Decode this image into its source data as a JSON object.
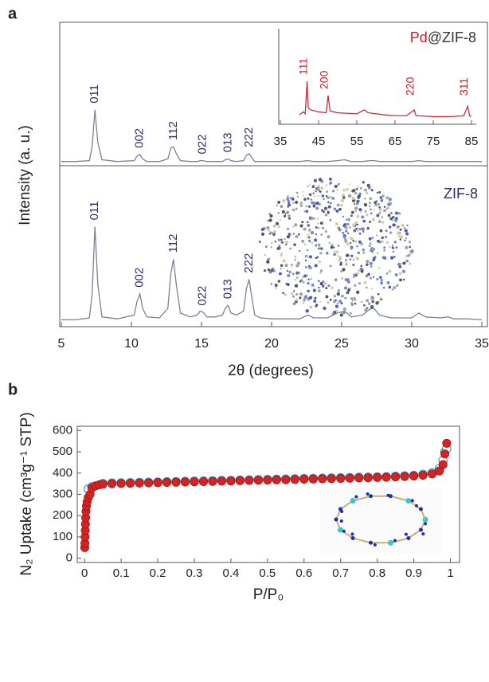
{
  "chart_data": [
    {
      "type": "line",
      "panel": "a",
      "xlabel": "2θ (degrees)",
      "ylabel": "Intensity (a. u.)",
      "xlim": [
        5,
        35
      ],
      "xticks": [
        5,
        10,
        15,
        20,
        25,
        30,
        35
      ],
      "ylim": [
        0,
        160
      ],
      "x": [
        5,
        6,
        7,
        7.2,
        7.4,
        7.6,
        7.9,
        9,
        10.2,
        10.4,
        10.6,
        10.8,
        11.1,
        12,
        12.6,
        12.8,
        13.0,
        13.2,
        13.5,
        14.2,
        14.7,
        14.9,
        15.1,
        15.4,
        16,
        16.5,
        16.7,
        16.9,
        17.1,
        17.5,
        18,
        18.2,
        18.4,
        18.6,
        18.8,
        19.2,
        20,
        22,
        22.6,
        23,
        24,
        24.7,
        25.2,
        25.7,
        26.5,
        27,
        27.3,
        27.7,
        28.5,
        30,
        30.5,
        31,
        32,
        32.6,
        33,
        34,
        35
      ],
      "series": [
        {
          "color": "#7c8098",
          "label_color": "#2b2f6e",
          "values": [
            3,
            3,
            4,
            20,
            62,
            25,
            5,
            3,
            4,
            9,
            11,
            6,
            3,
            3,
            6,
            18,
            20,
            12,
            4,
            3,
            3,
            4,
            4,
            3,
            3,
            3,
            5,
            6,
            4,
            3,
            4,
            10,
            12,
            7,
            3,
            3,
            3,
            3,
            4,
            3,
            3,
            4,
            5,
            3,
            3,
            4,
            4,
            3,
            3,
            3,
            4,
            3,
            3,
            3,
            3,
            3,
            3
          ],
          "peak_labels": [
            {
              "x": 7.4,
              "label": "011"
            },
            {
              "x": 10.6,
              "label": "002"
            },
            {
              "x": 13.0,
              "label": "112"
            },
            {
              "x": 15.1,
              "label": "022"
            },
            {
              "x": 16.9,
              "label": "013"
            },
            {
              "x": 18.4,
              "label": "222"
            }
          ]
        },
        {
          "name": "ZIF-8",
          "color": "#7c8098",
          "label_color": "#2b2f6e",
          "values": [
            3,
            3,
            5,
            30,
            100,
            40,
            6,
            4,
            8,
            22,
            30,
            15,
            6,
            5,
            15,
            50,
            66,
            40,
            10,
            6,
            8,
            12,
            11,
            6,
            6,
            8,
            15,
            18,
            10,
            8,
            12,
            35,
            45,
            25,
            8,
            5,
            4,
            4,
            8,
            5,
            5,
            10,
            12,
            6,
            8,
            14,
            15,
            8,
            5,
            5,
            10,
            6,
            5,
            6,
            4,
            4,
            3
          ],
          "peak_labels": [
            {
              "x": 7.4,
              "label": "011"
            },
            {
              "x": 10.6,
              "label": "002"
            },
            {
              "x": 13.0,
              "label": "112"
            },
            {
              "x": 15.1,
              "label": "022"
            },
            {
              "x": 16.9,
              "label": "013"
            },
            {
              "x": 18.4,
              "label": "222"
            }
          ]
        }
      ]
    },
    {
      "type": "line",
      "title": [
        "Pd",
        "@ZIF-8"
      ],
      "title_colors": [
        "#c8202a",
        "#333333"
      ],
      "xlim": [
        35,
        85
      ],
      "xticks": [
        35,
        45,
        55,
        65,
        75,
        85
      ],
      "ylim": [
        0,
        100
      ],
      "x": [
        40,
        41,
        41.5,
        42,
        42.3,
        43,
        45,
        47,
        47.5,
        48,
        50,
        55,
        57,
        58,
        62,
        65,
        68,
        70,
        70.5,
        75,
        80,
        83,
        84,
        84.5,
        85
      ],
      "series": [
        {
          "color": "#c8202a",
          "label_color": "#c8202a",
          "values": [
            5,
            8,
            6,
            40,
            12,
            10,
            8,
            7,
            25,
            9,
            7,
            6,
            10,
            7,
            5,
            4,
            4,
            10,
            4,
            3,
            3,
            4,
            14,
            4,
            3
          ],
          "peak_labels": [
            {
              "x": 42,
              "label": "111"
            },
            {
              "x": 47.5,
              "label": "200"
            },
            {
              "x": 70,
              "label": "220"
            },
            {
              "x": 84,
              "label": "311"
            }
          ]
        }
      ]
    },
    {
      "type": "scatter",
      "panel": "b",
      "xlabel": "P/P₀",
      "ylabel": "N₂ Uptake (cm³g⁻¹ STP)",
      "xlim": [
        -0.02,
        1.025
      ],
      "xticks": [
        0,
        0.1,
        0.2,
        0.3,
        0.4,
        0.5,
        0.6,
        0.7,
        0.8,
        0.9,
        1
      ],
      "ylim": [
        -20,
        620
      ],
      "yticks": [
        0,
        100,
        200,
        300,
        400,
        500,
        600
      ],
      "series": [
        {
          "marker": "open",
          "color": "#3f93c6",
          "x": [
            0.01,
            0.02,
            0.05,
            0.075,
            0.1,
            0.125,
            0.15,
            0.175,
            0.2,
            0.225,
            0.25,
            0.275,
            0.3,
            0.325,
            0.35,
            0.375,
            0.4,
            0.425,
            0.45,
            0.475,
            0.5,
            0.525,
            0.55,
            0.575,
            0.6,
            0.625,
            0.65,
            0.675,
            0.7,
            0.725,
            0.75,
            0.775,
            0.8,
            0.825,
            0.85,
            0.875,
            0.9,
            0.925,
            0.95,
            0.97,
            0.98,
            0.985,
            0.99
          ],
          "values": [
            325,
            335,
            351,
            353,
            354,
            355,
            356,
            357,
            358,
            359,
            360,
            361,
            362,
            363,
            364,
            365,
            366,
            367,
            368,
            369,
            370,
            371,
            372,
            373,
            374,
            375,
            376,
            377,
            378,
            379,
            380,
            381,
            382,
            383,
            385,
            387,
            389,
            394,
            401,
            420,
            460,
            500,
            515
          ]
        },
        {
          "marker": "filled",
          "color": "#d62222",
          "x": [
            0.0005,
            0.001,
            0.0015,
            0.002,
            0.0025,
            0.003,
            0.004,
            0.005,
            0.007,
            0.01,
            0.015,
            0.02,
            0.03,
            0.04,
            0.05,
            0.075,
            0.1,
            0.125,
            0.15,
            0.175,
            0.2,
            0.225,
            0.25,
            0.275,
            0.3,
            0.325,
            0.35,
            0.375,
            0.4,
            0.425,
            0.45,
            0.475,
            0.5,
            0.525,
            0.55,
            0.575,
            0.6,
            0.625,
            0.65,
            0.675,
            0.7,
            0.725,
            0.75,
            0.775,
            0.8,
            0.825,
            0.85,
            0.875,
            0.9,
            0.925,
            0.95,
            0.97,
            0.98,
            0.985,
            0.99
          ],
          "values": [
            50,
            70,
            100,
            130,
            160,
            190,
            220,
            245,
            265,
            285,
            300,
            330,
            340,
            345,
            348,
            350,
            351,
            352,
            353,
            354,
            355,
            356,
            357,
            358,
            359,
            360,
            361,
            362,
            363,
            364,
            365,
            366,
            367,
            368,
            369,
            370,
            371,
            372,
            373,
            374,
            375,
            376,
            377,
            378,
            379,
            380,
            382,
            384,
            386,
            390,
            396,
            410,
            440,
            490,
            540
          ]
        }
      ]
    }
  ]
}
